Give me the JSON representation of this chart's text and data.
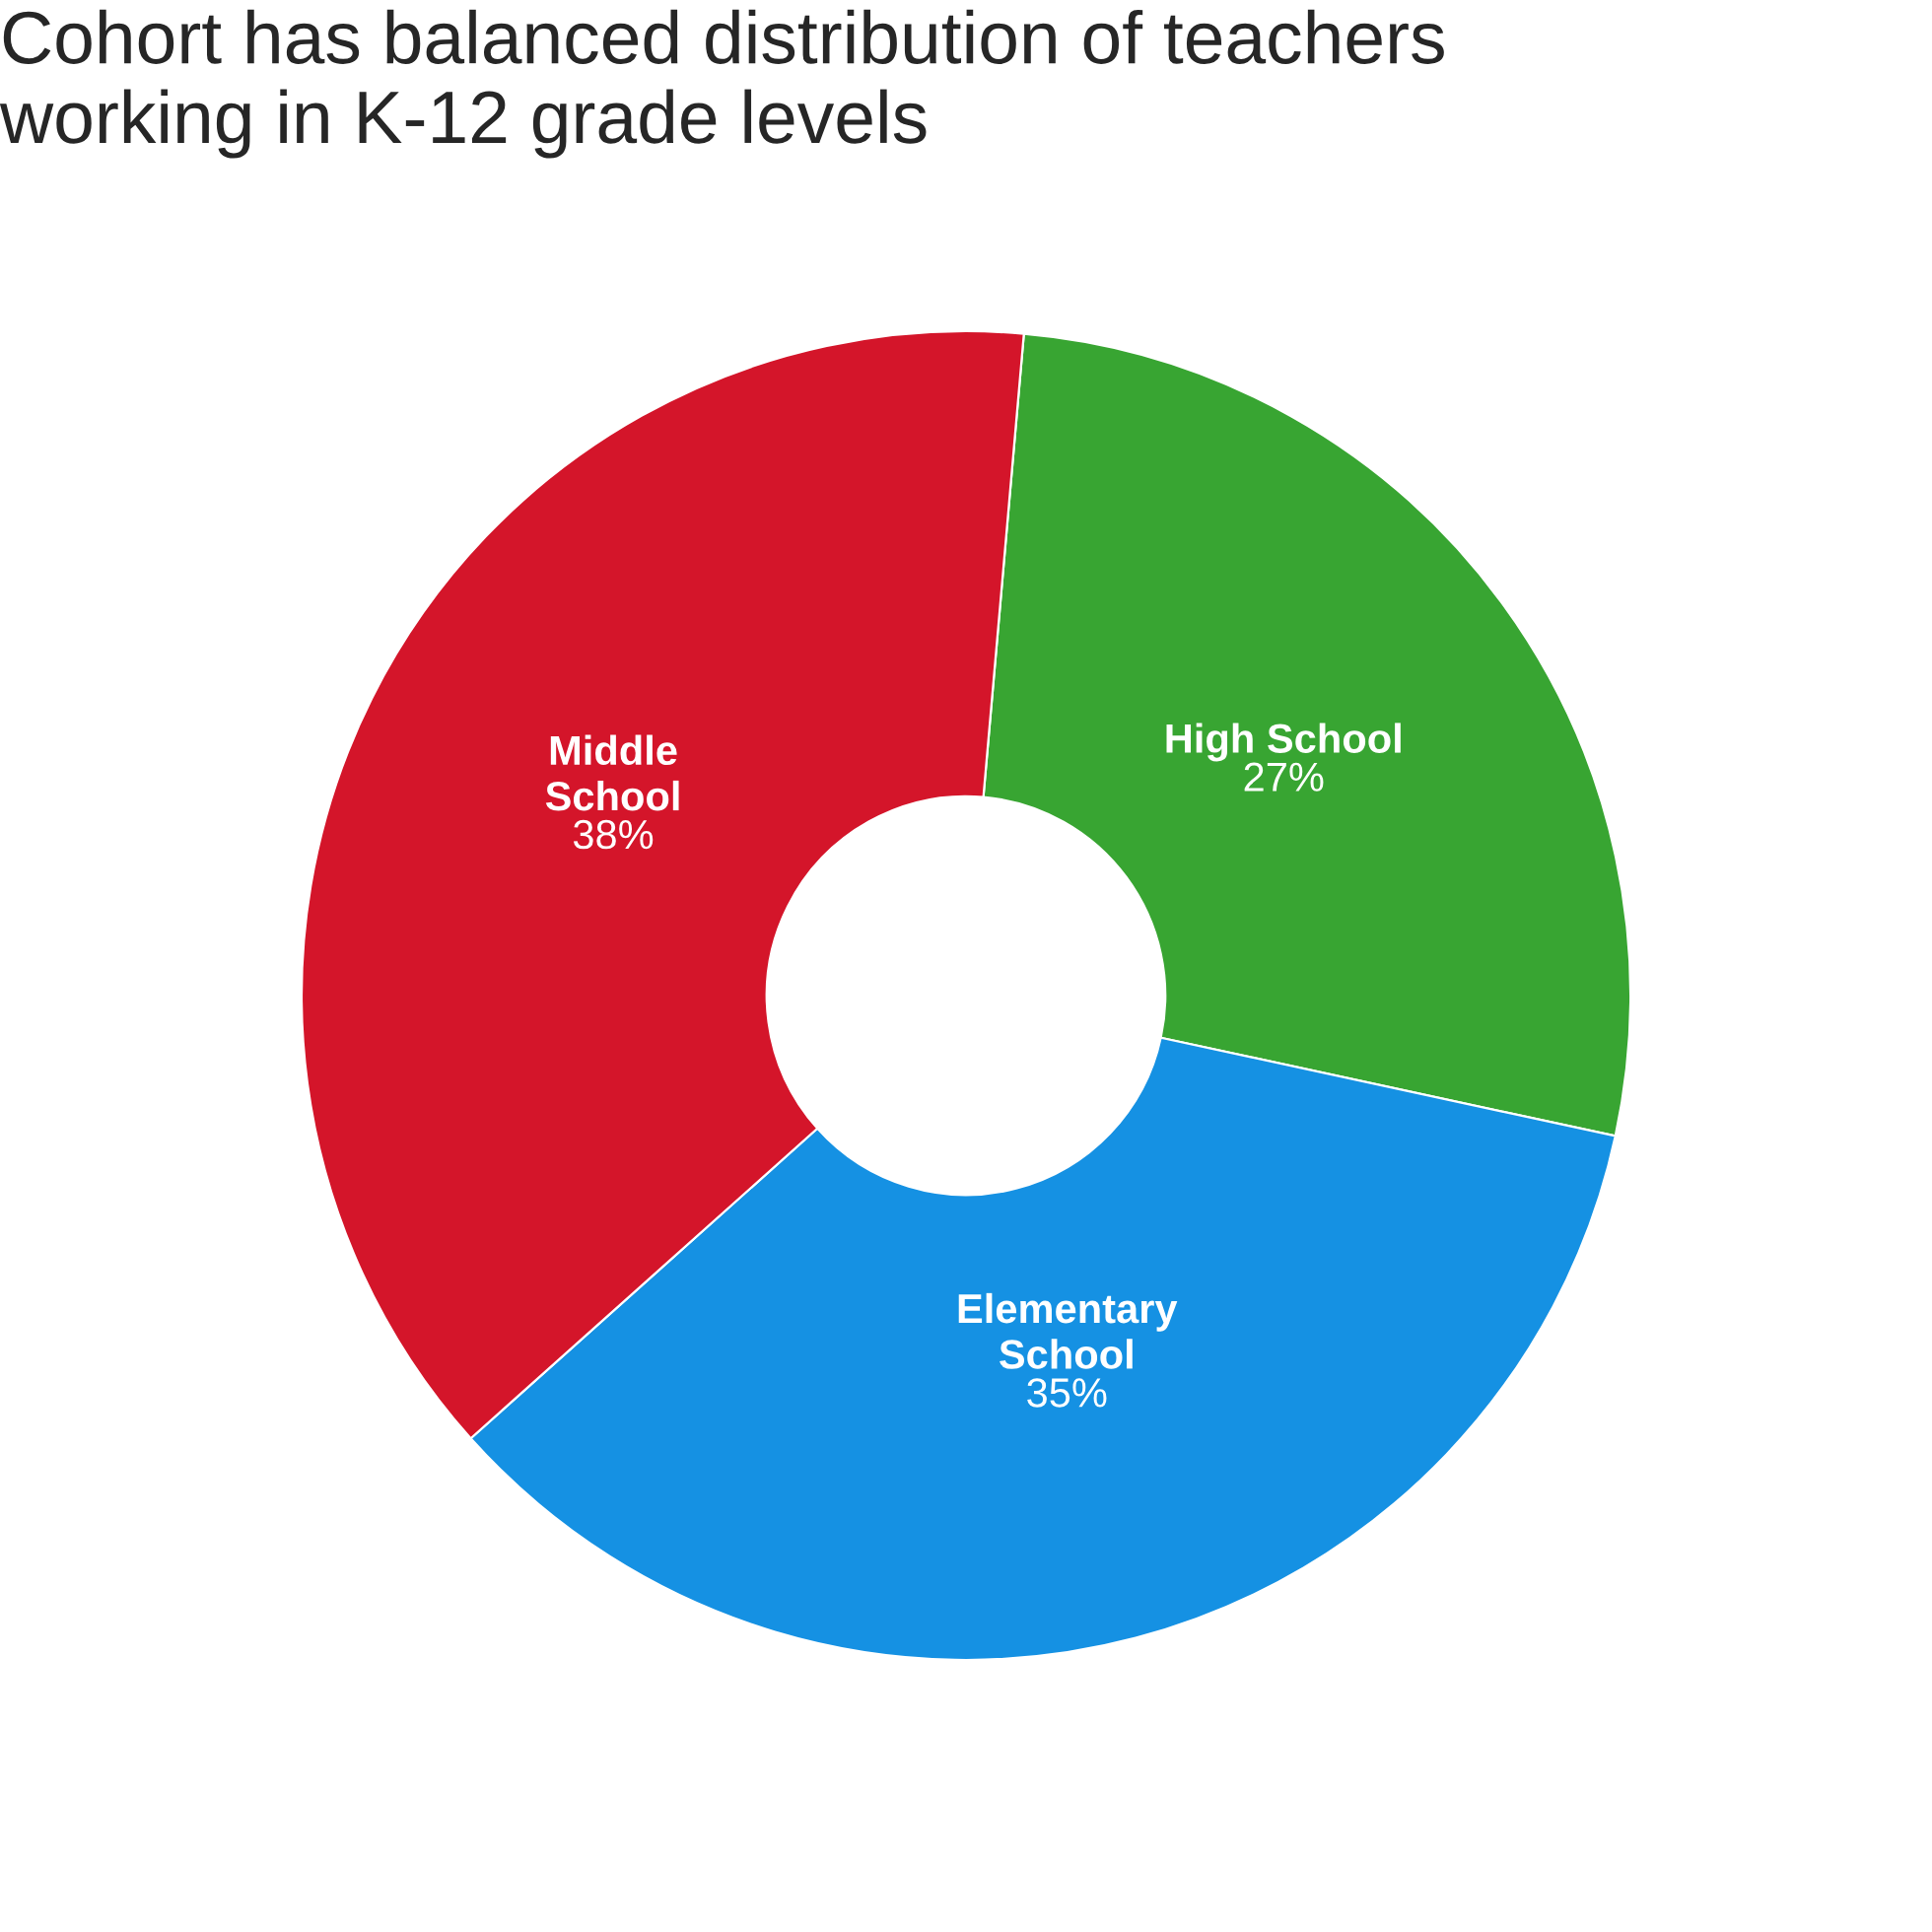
{
  "chart_data": {
    "type": "donut",
    "title": "Cohort has balanced distribution of teachers\nworking in K-12 grade levels",
    "categories": [
      "High School",
      "Elementary\nSchool",
      "Middle\nSchool"
    ],
    "values": [
      27,
      35,
      38
    ],
    "colors": [
      "#38a532",
      "#1591e3",
      "#d4152a"
    ],
    "value_labels": [
      "27%",
      "35%",
      "38%"
    ]
  }
}
